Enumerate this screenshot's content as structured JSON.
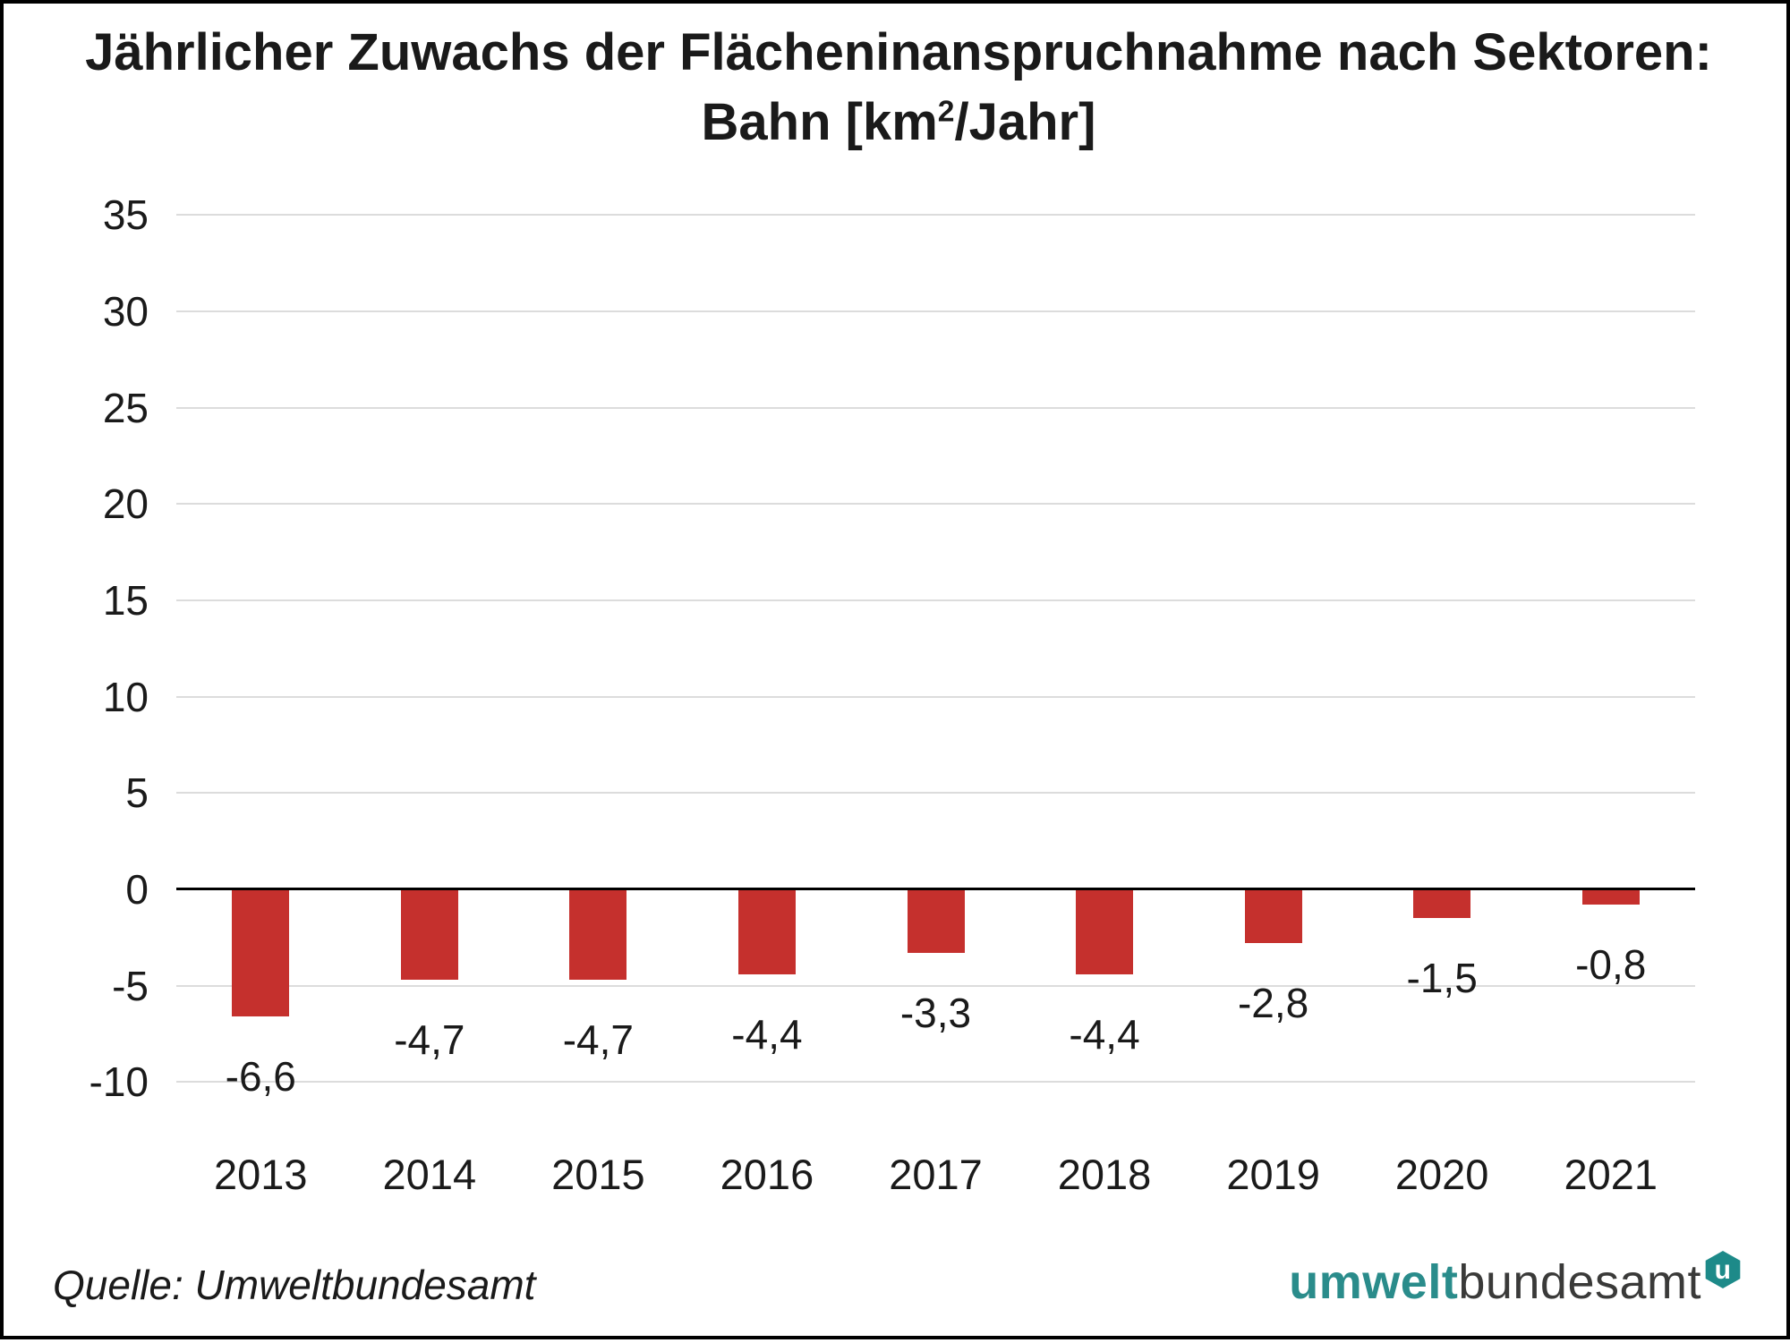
{
  "title": {
    "line1": "Jährlicher Zuwachs der Flächeninanspruchnahme nach Sektoren:",
    "line2_prefix": "Bahn [km",
    "line2_sup": "2",
    "line2_suffix": "/Jahr]"
  },
  "chart_data": {
    "type": "bar",
    "categories": [
      "2013",
      "2014",
      "2015",
      "2016",
      "2017",
      "2018",
      "2019",
      "2020",
      "2021"
    ],
    "values": [
      -6.6,
      -4.7,
      -4.7,
      -4.4,
      -3.3,
      -4.4,
      -2.8,
      -1.5,
      -0.8
    ],
    "value_labels": [
      "-6,6",
      "-4,7",
      "-4,7",
      "-4,4",
      "-3,3",
      "-4,4",
      "-2,8",
      "-1,5",
      "-0,8"
    ],
    "title": "Jährlicher Zuwachs der Flächeninanspruchnahme nach Sektoren: Bahn [km²/Jahr]",
    "xlabel": "",
    "ylabel": "",
    "ylim": [
      -10,
      35
    ],
    "yticks": [
      35,
      30,
      25,
      20,
      15,
      10,
      5,
      0,
      -5,
      -10
    ],
    "grid": "horizontal-only",
    "legend": "none",
    "bar_color": "#c5302d"
  },
  "footer": {
    "source": "Quelle: Umweltbundesamt",
    "logo": {
      "part1": "umwelt",
      "part2": "bundesamt",
      "badge_letter": "u"
    }
  },
  "colors": {
    "bar_red": "#c5302d",
    "logo_teal": "#2a8c8b",
    "logo_badge_teal": "#1d8a89",
    "logo_gray": "#3a3a39",
    "gridline_gray": "#dcdcdc",
    "axis_black": "#000000",
    "text_dark": "#1a1a1a",
    "frame_border": "#000000",
    "background": "#ffffff"
  }
}
